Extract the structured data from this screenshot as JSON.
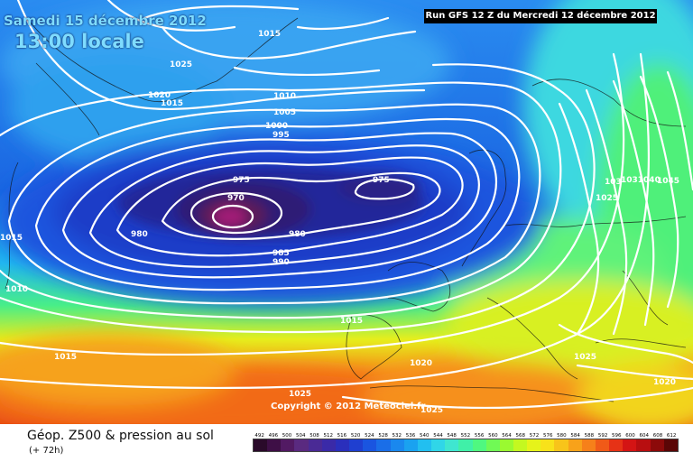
{
  "header": {
    "date_label": "Samedi 15 décembre 2012",
    "time_label": "13:00 locale",
    "run_label": "Run GFS 12 Z du Mercredi 12 décembre 2012"
  },
  "map": {
    "copyright": "Copyright © 2012 Meteociel.fr",
    "isobar_labels": [
      {
        "id": "label-1015-nw",
        "text": "1015"
      },
      {
        "id": "label-1025-n",
        "text": "1025"
      },
      {
        "id": "label-1020-w",
        "text": "1020"
      },
      {
        "id": "label-1015-w",
        "text": "1015"
      },
      {
        "id": "label-1010-n",
        "text": "1010"
      },
      {
        "id": "label-1005",
        "text": "1005"
      },
      {
        "id": "label-1000",
        "text": "1000"
      },
      {
        "id": "label-995",
        "text": "995"
      },
      {
        "id": "label-975-c",
        "text": "975"
      },
      {
        "id": "label-975-e",
        "text": "975"
      },
      {
        "id": "label-970",
        "text": "970"
      },
      {
        "id": "label-980-w",
        "text": "980"
      },
      {
        "id": "label-980-c",
        "text": "980"
      },
      {
        "id": "label-985",
        "text": "985"
      },
      {
        "id": "label-990",
        "text": "990"
      },
      {
        "id": "label-1015-edge",
        "text": "1015"
      },
      {
        "id": "label-1010-sw",
        "text": "1010"
      },
      {
        "id": "label-1015-mid",
        "text": "1015"
      },
      {
        "id": "label-1015-sw",
        "text": "1015"
      },
      {
        "id": "label-1020-s",
        "text": "1020"
      },
      {
        "id": "label-1025-s",
        "text": "1025"
      },
      {
        "id": "label-1025-sc",
        "text": "1025"
      },
      {
        "id": "label-1025-se",
        "text": "1025"
      },
      {
        "id": "label-1020-se",
        "text": "1020"
      },
      {
        "id": "label-103",
        "text": "103"
      },
      {
        "id": "label-1031040",
        "text": "1031040"
      },
      {
        "id": "label-1045",
        "text": "1045"
      },
      {
        "id": "label-1025-ne",
        "text": "1025"
      }
    ]
  },
  "footer": {
    "title": "Géop. Z500 & pression au sol",
    "subtitle": "(+ 72h)"
  },
  "legend": {
    "labels": [
      "492",
      "496",
      "500",
      "504",
      "508",
      "512",
      "516",
      "520",
      "524",
      "528",
      "532",
      "536",
      "540",
      "544",
      "548",
      "552",
      "556",
      "560",
      "564",
      "568",
      "572",
      "576",
      "580",
      "584",
      "588",
      "592",
      "596",
      "600",
      "604",
      "608",
      "612"
    ],
    "colors": [
      "#2a0a2a",
      "#3e0f46",
      "#521a63",
      "#5a2a80",
      "#4a2a95",
      "#3a2aa8",
      "#2a2fbc",
      "#1f3fd0",
      "#1a55e0",
      "#1a6ee8",
      "#1a88ee",
      "#1aa2f0",
      "#22bff0",
      "#30d6e8",
      "#3fe6d0",
      "#40f0a8",
      "#4ff880",
      "#70fa55",
      "#9afa30",
      "#c4f820",
      "#e6f31a",
      "#f8e21a",
      "#f8c41a",
      "#f8a21a",
      "#f6801a",
      "#f05a18",
      "#e63216",
      "#d41414",
      "#b80e10",
      "#8c0a0a",
      "#5a0606"
    ]
  },
  "colors": {
    "low_core": "#8c1a6a",
    "deep_blue": "#1a2a9a",
    "ocean_blue": "#1a68e0",
    "green": "#48f070",
    "yellow": "#f0ec20",
    "orange": "#f6901a",
    "red": "#e03010"
  }
}
